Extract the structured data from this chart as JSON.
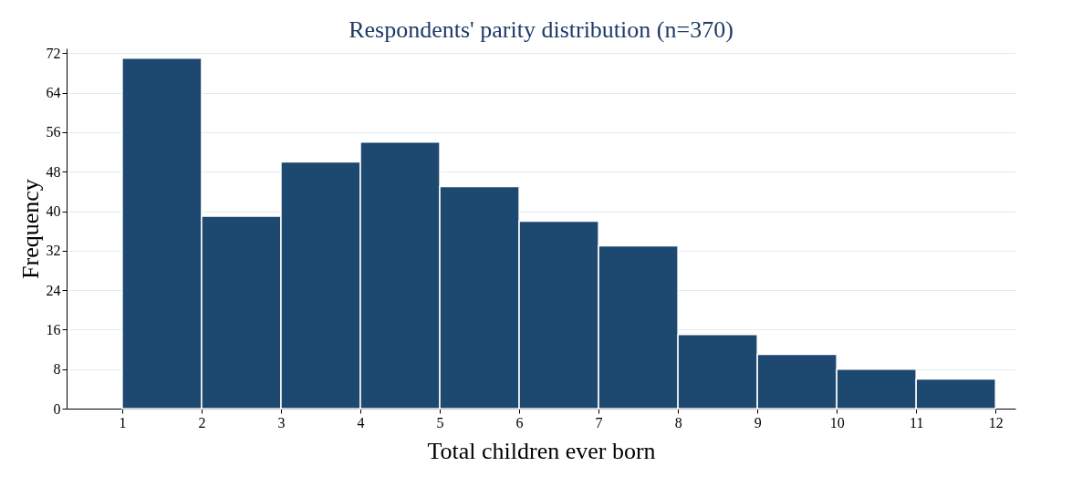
{
  "chart_data": {
    "type": "histogram",
    "title": "Respondents' parity distribution (n=370)",
    "xlabel": "Total children ever born",
    "ylabel": "Frequency",
    "bins": [
      1,
      2,
      3,
      4,
      5,
      6,
      7,
      8,
      9,
      10,
      11,
      12
    ],
    "values": [
      71,
      39,
      50,
      54,
      45,
      38,
      33,
      15,
      11,
      8,
      6
    ],
    "color": "#1d4870",
    "xlim": [
      0.3,
      12.25
    ],
    "xticks": [
      1,
      2,
      3,
      4,
      5,
      6,
      7,
      8,
      9,
      10,
      11,
      12
    ],
    "ylim": [
      0,
      73
    ],
    "yticks": [
      0,
      8,
      16,
      24,
      32,
      40,
      48,
      56,
      64,
      72
    ],
    "grid": "y"
  }
}
